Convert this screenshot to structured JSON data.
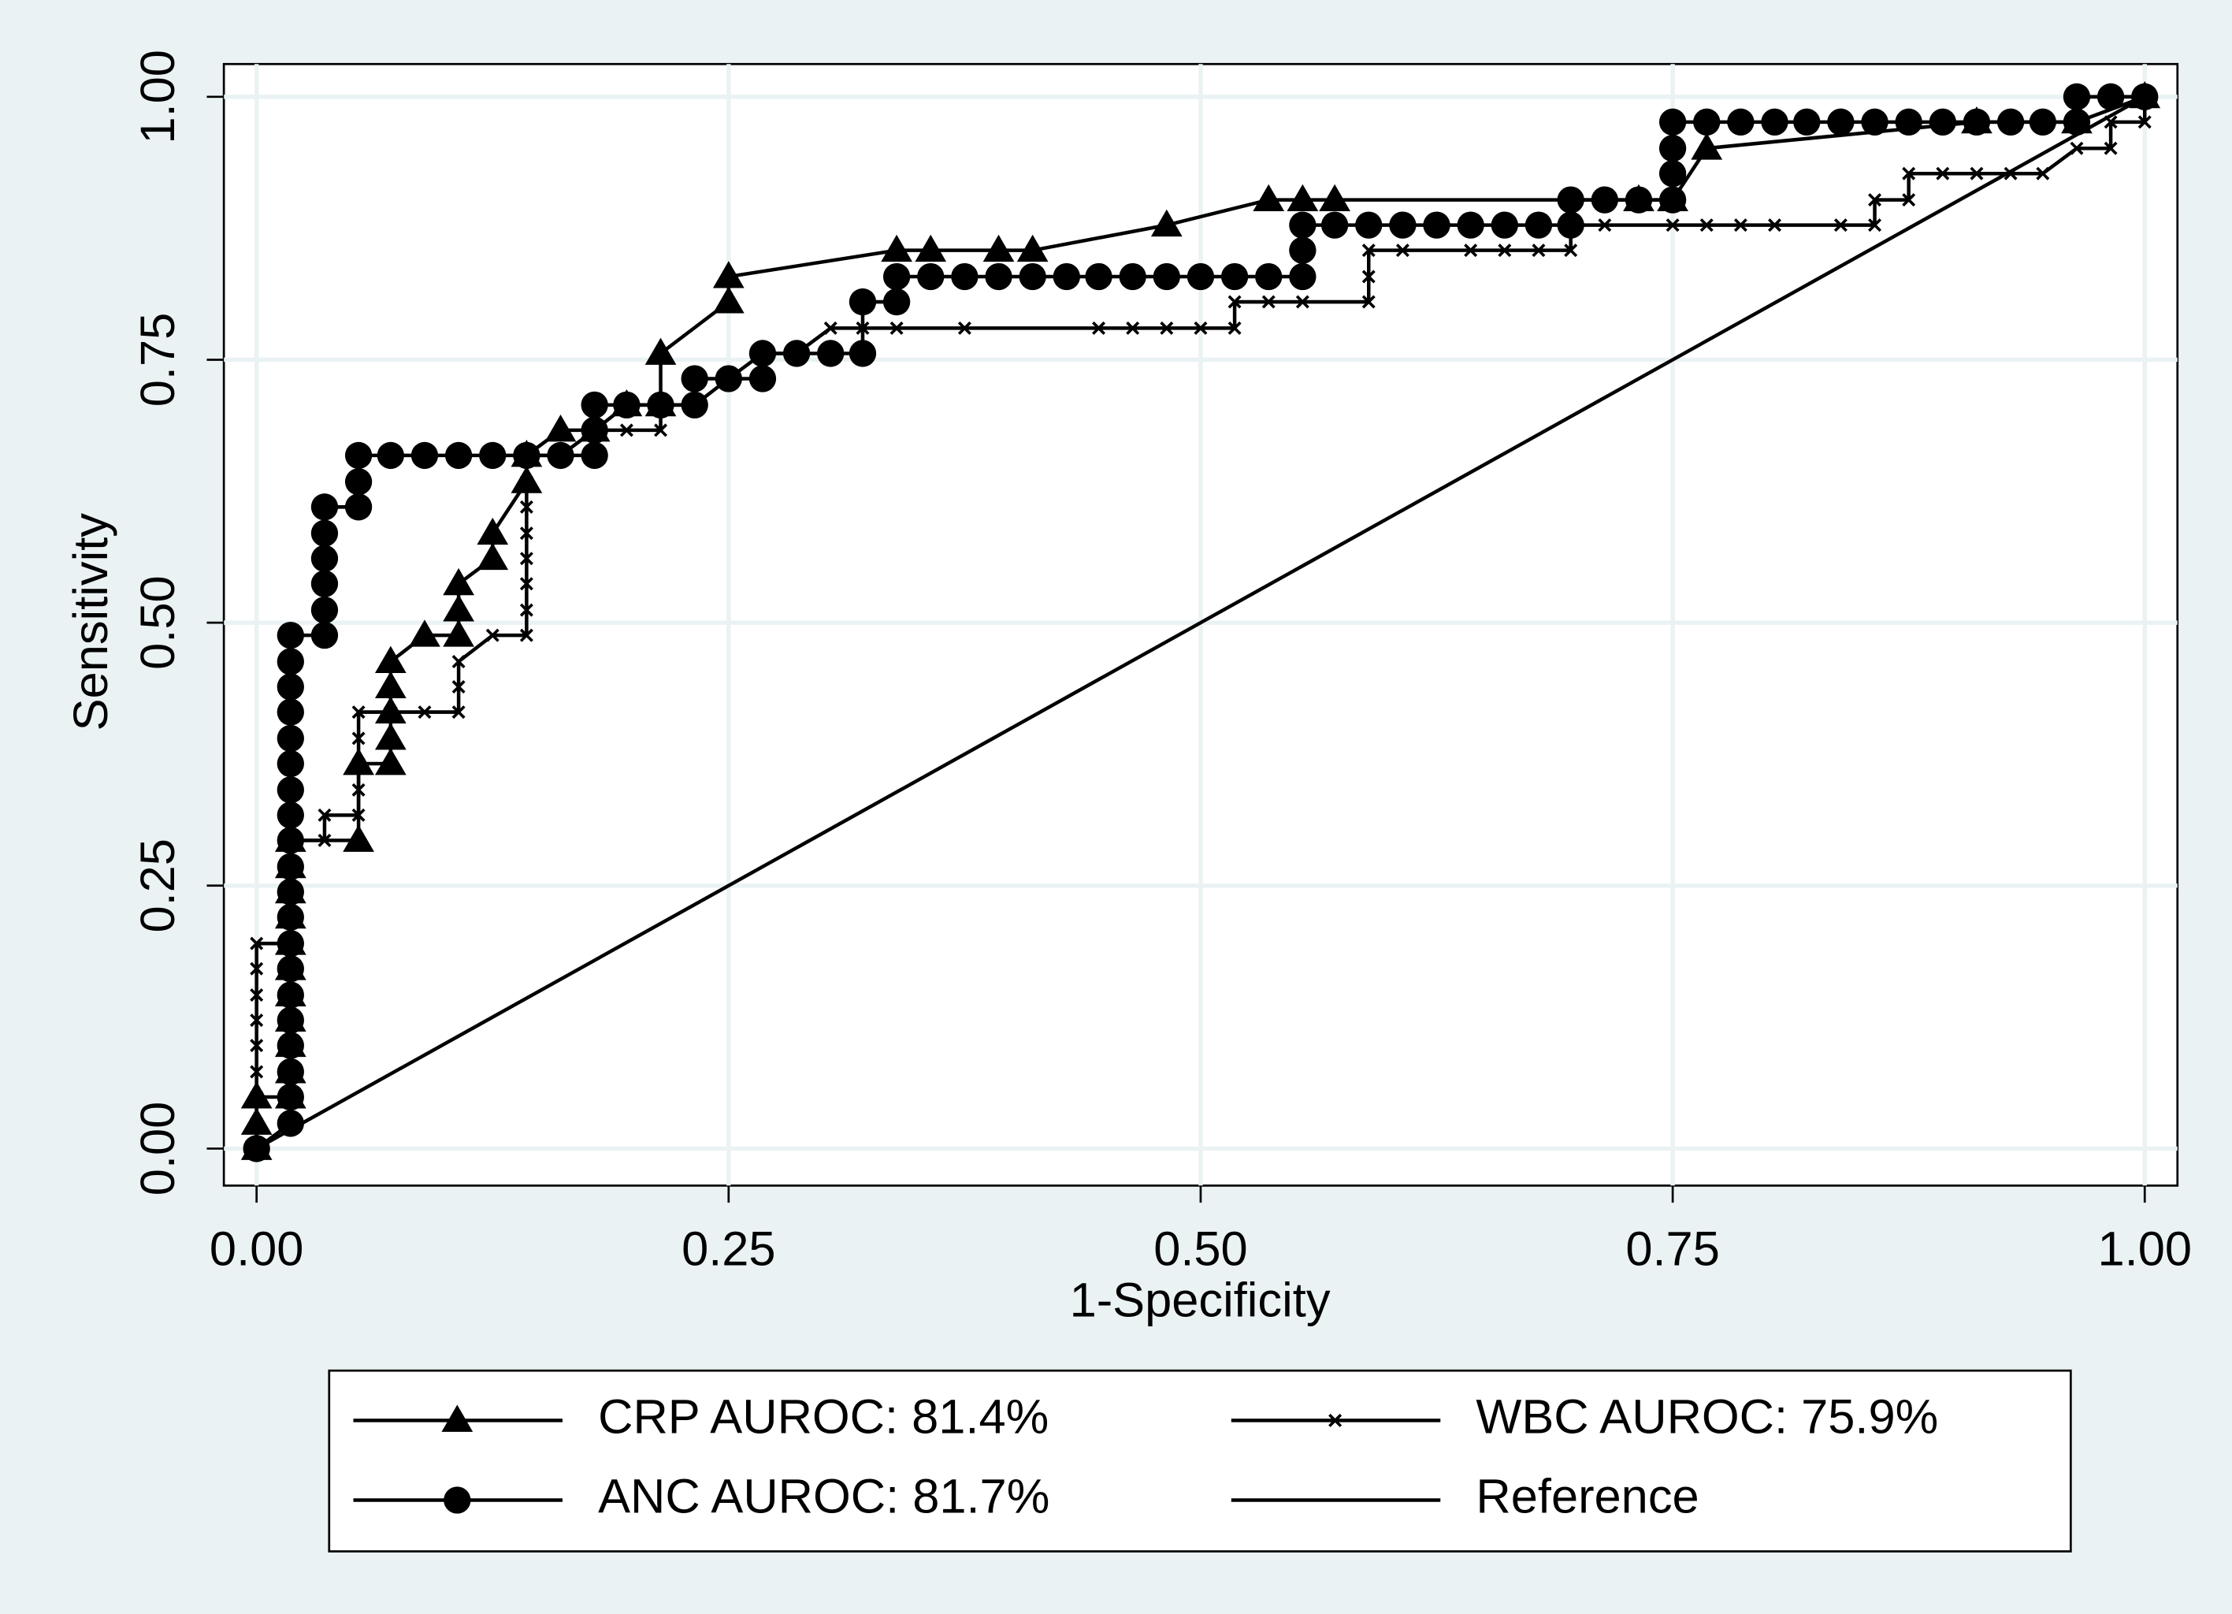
{
  "chart_data": {
    "type": "roc",
    "xlabel": "1-Specificity",
    "ylabel": "Sensitivity",
    "xlim": [
      0,
      1
    ],
    "ylim": [
      0,
      1
    ],
    "xticks": [
      {
        "value": 0,
        "label": "0.00"
      },
      {
        "value": 0.25,
        "label": "0.25"
      },
      {
        "value": 0.5,
        "label": "0.50"
      },
      {
        "value": 0.75,
        "label": "0.75"
      },
      {
        "value": 1,
        "label": "1.00"
      }
    ],
    "yticks": [
      {
        "value": 0,
        "label": "0.00"
      },
      {
        "value": 0.25,
        "label": "0.25"
      },
      {
        "value": 0.5,
        "label": "0.50"
      },
      {
        "value": 0.75,
        "label": "0.75"
      },
      {
        "value": 1,
        "label": "1.00"
      }
    ],
    "grid": true,
    "legend": "bottom",
    "series": [
      {
        "name": "CRP AUROC: 81.4%",
        "color": "#000000",
        "marker": "triangle",
        "x": [
          0,
          0,
          0,
          0.018,
          0.018,
          0.018,
          0.018,
          0.018,
          0.018,
          0.018,
          0.018,
          0.018,
          0.018,
          0.018,
          0.054,
          0.054,
          0.071,
          0.071,
          0.071,
          0.071,
          0.071,
          0.089,
          0.107,
          0.107,
          0.107,
          0.125,
          0.125,
          0.143,
          0.143,
          0.161,
          0.179,
          0.196,
          0.214,
          0.214,
          0.25,
          0.25,
          0.339,
          0.357,
          0.393,
          0.411,
          0.482,
          0.536,
          0.554,
          0.571,
          0.732,
          0.75,
          0.768,
          0.911,
          0.964,
          1
        ],
        "values": [
          0,
          0.024,
          0.049,
          0.049,
          0.073,
          0.098,
          0.122,
          0.146,
          0.171,
          0.195,
          0.22,
          0.244,
          0.268,
          0.293,
          0.293,
          0.366,
          0.366,
          0.39,
          0.415,
          0.439,
          0.463,
          0.488,
          0.488,
          0.512,
          0.537,
          0.561,
          0.585,
          0.634,
          0.659,
          0.683,
          0.683,
          0.707,
          0.707,
          0.756,
          0.805,
          0.829,
          0.854,
          0.854,
          0.854,
          0.854,
          0.878,
          0.902,
          0.902,
          0.902,
          0.902,
          0.902,
          0.951,
          0.976,
          0.976,
          1
        ]
      },
      {
        "name": "ANC AUROC: 81.7%",
        "color": "#000000",
        "marker": "circle",
        "x": [
          0,
          0.018,
          0.018,
          0.018,
          0.018,
          0.018,
          0.018,
          0.018,
          0.018,
          0.018,
          0.018,
          0.018,
          0.018,
          0.018,
          0.018,
          0.018,
          0.018,
          0.018,
          0.018,
          0.018,
          0.018,
          0.036,
          0.036,
          0.036,
          0.036,
          0.036,
          0.036,
          0.054,
          0.054,
          0.054,
          0.071,
          0.089,
          0.107,
          0.125,
          0.143,
          0.161,
          0.179,
          0.179,
          0.179,
          0.196,
          0.214,
          0.232,
          0.232,
          0.25,
          0.268,
          0.268,
          0.286,
          0.304,
          0.321,
          0.321,
          0.339,
          0.339,
          0.357,
          0.375,
          0.393,
          0.411,
          0.429,
          0.446,
          0.464,
          0.482,
          0.5,
          0.518,
          0.536,
          0.554,
          0.554,
          0.554,
          0.571,
          0.589,
          0.607,
          0.625,
          0.643,
          0.661,
          0.679,
          0.696,
          0.696,
          0.714,
          0.732,
          0.75,
          0.75,
          0.75,
          0.75,
          0.768,
          0.786,
          0.804,
          0.821,
          0.839,
          0.857,
          0.875,
          0.893,
          0.911,
          0.929,
          0.946,
          0.964,
          0.964,
          0.982,
          1
        ],
        "values": [
          0,
          0.024,
          0.049,
          0.073,
          0.098,
          0.122,
          0.146,
          0.171,
          0.195,
          0.22,
          0.244,
          0.268,
          0.293,
          0.317,
          0.341,
          0.366,
          0.39,
          0.415,
          0.439,
          0.463,
          0.488,
          0.488,
          0.512,
          0.537,
          0.561,
          0.585,
          0.61,
          0.61,
          0.634,
          0.659,
          0.659,
          0.659,
          0.659,
          0.659,
          0.659,
          0.659,
          0.659,
          0.683,
          0.707,
          0.707,
          0.707,
          0.707,
          0.732,
          0.732,
          0.732,
          0.756,
          0.756,
          0.756,
          0.756,
          0.805,
          0.805,
          0.829,
          0.829,
          0.829,
          0.829,
          0.829,
          0.829,
          0.829,
          0.829,
          0.829,
          0.829,
          0.829,
          0.829,
          0.829,
          0.854,
          0.878,
          0.878,
          0.878,
          0.878,
          0.878,
          0.878,
          0.878,
          0.878,
          0.878,
          0.902,
          0.902,
          0.902,
          0.902,
          0.927,
          0.951,
          0.976,
          0.976,
          0.976,
          0.976,
          0.976,
          0.976,
          0.976,
          0.976,
          0.976,
          0.976,
          0.976,
          0.976,
          0.976,
          1,
          1,
          1
        ]
      },
      {
        "name": "WBC AUROC: 75.9%",
        "color": "#000000",
        "marker": "x",
        "x": [
          0,
          0,
          0,
          0,
          0,
          0,
          0,
          0,
          0,
          0.018,
          0.018,
          0.018,
          0.018,
          0.018,
          0.036,
          0.036,
          0.054,
          0.054,
          0.054,
          0.054,
          0.054,
          0.071,
          0.089,
          0.107,
          0.107,
          0.107,
          0.125,
          0.143,
          0.143,
          0.143,
          0.143,
          0.143,
          0.143,
          0.143,
          0.143,
          0.161,
          0.179,
          0.196,
          0.214,
          0.214,
          0.232,
          0.25,
          0.268,
          0.286,
          0.304,
          0.321,
          0.339,
          0.375,
          0.446,
          0.464,
          0.482,
          0.5,
          0.518,
          0.518,
          0.536,
          0.554,
          0.589,
          0.589,
          0.589,
          0.607,
          0.643,
          0.661,
          0.679,
          0.696,
          0.696,
          0.714,
          0.75,
          0.768,
          0.786,
          0.804,
          0.839,
          0.857,
          0.857,
          0.875,
          0.875,
          0.893,
          0.911,
          0.929,
          0.946,
          0.964,
          0.982,
          0.982,
          1,
          1
        ],
        "values": [
          0,
          0.024,
          0.049,
          0.073,
          0.098,
          0.122,
          0.146,
          0.171,
          0.195,
          0.195,
          0.22,
          0.244,
          0.268,
          0.293,
          0.293,
          0.317,
          0.317,
          0.341,
          0.366,
          0.39,
          0.415,
          0.415,
          0.415,
          0.415,
          0.439,
          0.463,
          0.488,
          0.488,
          0.512,
          0.537,
          0.561,
          0.585,
          0.61,
          0.634,
          0.659,
          0.659,
          0.683,
          0.683,
          0.683,
          0.707,
          0.707,
          0.732,
          0.756,
          0.756,
          0.78,
          0.78,
          0.78,
          0.78,
          0.78,
          0.78,
          0.78,
          0.78,
          0.78,
          0.805,
          0.805,
          0.805,
          0.805,
          0.829,
          0.854,
          0.854,
          0.854,
          0.854,
          0.854,
          0.854,
          0.878,
          0.878,
          0.878,
          0.878,
          0.878,
          0.878,
          0.878,
          0.878,
          0.902,
          0.902,
          0.927,
          0.927,
          0.927,
          0.927,
          0.927,
          0.951,
          0.951,
          0.976,
          0.976,
          1
        ]
      },
      {
        "name": "Reference",
        "color": "#000000",
        "marker": "none",
        "x": [
          0,
          1
        ],
        "values": [
          0,
          1
        ]
      }
    ]
  }
}
